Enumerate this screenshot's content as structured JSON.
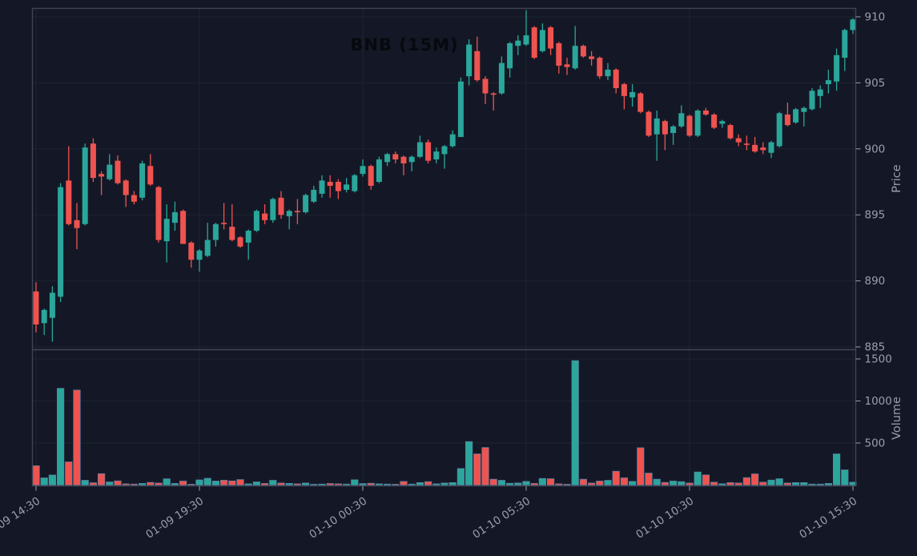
{
  "chart_data": {
    "type": "candlestick",
    "title": "BNB (15M)",
    "symbol": "BNB",
    "timeframe": "15M",
    "legend_position": "none",
    "grid": true,
    "x_axis": {
      "tick_labels": [
        "01-09 14:30",
        "01-09 19:30",
        "01-10 00:30",
        "01-10 05:30",
        "01-10 10:30",
        "01-10 15:30"
      ],
      "tick_indices": [
        0,
        20,
        40,
        60,
        80,
        100
      ]
    },
    "price_axis": {
      "label": "Price",
      "ticks": [
        885,
        890,
        895,
        900,
        905,
        910
      ],
      "range": [
        884.3,
        910.7
      ]
    },
    "volume_axis": {
      "label": "Volume",
      "ticks": [
        500,
        1000,
        1500
      ],
      "range": [
        0,
        1600
      ]
    },
    "colors": {
      "up": "#2aa69a",
      "down": "#ef5350",
      "background": "#141826",
      "grid": "#1e2330",
      "frame": "#3f4454",
      "tick_text": "#9b9eab",
      "title_text": "#07090e",
      "volume_bar_edge": "#5c82a6"
    },
    "candles_format": [
      "open",
      "high",
      "low",
      "close",
      "volume"
    ],
    "candles": [
      [
        889.2,
        889.9,
        886.1,
        886.7,
        230
      ],
      [
        886.8,
        887.9,
        885.9,
        887.8,
        86
      ],
      [
        887.2,
        889.6,
        885.4,
        889.1,
        120
      ],
      [
        888.8,
        897.4,
        888.4,
        897.1,
        1150
      ],
      [
        897.6,
        900.2,
        894.2,
        894.3,
        276
      ],
      [
        894.6,
        895.9,
        892.4,
        894.0,
        1130
      ],
      [
        894.3,
        900.4,
        894.2,
        900.1,
        57
      ],
      [
        900.4,
        900.8,
        897.5,
        897.8,
        28
      ],
      [
        898.1,
        898.3,
        896.5,
        897.9,
        136
      ],
      [
        897.7,
        899.6,
        897.6,
        898.8,
        38
      ],
      [
        899.1,
        899.5,
        897.3,
        897.4,
        50
      ],
      [
        897.6,
        897.7,
        895.6,
        896.5,
        15
      ],
      [
        896.5,
        896.8,
        895.8,
        896.0,
        12
      ],
      [
        896.3,
        899.1,
        896.1,
        898.9,
        20
      ],
      [
        898.7,
        899.6,
        897.2,
        897.3,
        32
      ],
      [
        897.1,
        897.2,
        892.9,
        893.1,
        25
      ],
      [
        893.0,
        895.8,
        891.4,
        894.7,
        75
      ],
      [
        894.4,
        896.0,
        893.8,
        895.2,
        20
      ],
      [
        895.3,
        895.4,
        892.8,
        892.8,
        48
      ],
      [
        892.9,
        893.0,
        891.0,
        891.6,
        10
      ],
      [
        891.6,
        892.4,
        890.7,
        892.3,
        62
      ],
      [
        891.9,
        894.4,
        891.8,
        893.1,
        81
      ],
      [
        893.1,
        894.4,
        892.6,
        894.3,
        48
      ],
      [
        894.4,
        895.9,
        893.9,
        894.3,
        58
      ],
      [
        894.1,
        895.8,
        893.0,
        893.1,
        50
      ],
      [
        893.3,
        893.4,
        892.5,
        892.6,
        66
      ],
      [
        892.9,
        893.9,
        891.6,
        893.8,
        15
      ],
      [
        893.8,
        895.4,
        893.7,
        895.3,
        38
      ],
      [
        895.1,
        895.8,
        894.3,
        894.6,
        20
      ],
      [
        894.6,
        896.3,
        894.4,
        896.2,
        57
      ],
      [
        896.3,
        896.8,
        894.7,
        895.0,
        25
      ],
      [
        894.9,
        895.4,
        893.9,
        895.3,
        20
      ],
      [
        895.3,
        896.2,
        894.3,
        895.2,
        15
      ],
      [
        895.2,
        896.6,
        895.1,
        896.5,
        25
      ],
      [
        896.0,
        897.2,
        895.9,
        896.9,
        10
      ],
      [
        896.6,
        898.0,
        896.3,
        897.6,
        12
      ],
      [
        897.5,
        898.0,
        896.3,
        897.2,
        19
      ],
      [
        897.5,
        897.7,
        896.2,
        896.8,
        15
      ],
      [
        896.9,
        897.8,
        896.7,
        897.3,
        12
      ],
      [
        896.8,
        898.1,
        896.7,
        898.0,
        63
      ],
      [
        898.1,
        899.2,
        897.9,
        898.7,
        18
      ],
      [
        898.7,
        898.8,
        896.9,
        897.2,
        22
      ],
      [
        897.5,
        899.4,
        897.4,
        899.2,
        15
      ],
      [
        899.0,
        899.7,
        898.7,
        899.6,
        12
      ],
      [
        899.6,
        899.8,
        898.9,
        899.2,
        10
      ],
      [
        899.4,
        899.5,
        898.0,
        898.9,
        44
      ],
      [
        899.0,
        899.5,
        898.3,
        899.4,
        12
      ],
      [
        899.4,
        901.0,
        899.3,
        900.5,
        30
      ],
      [
        900.5,
        900.7,
        898.9,
        899.1,
        41
      ],
      [
        899.2,
        900.1,
        898.9,
        899.8,
        15
      ],
      [
        899.6,
        900.3,
        898.5,
        900.2,
        25
      ],
      [
        900.2,
        901.4,
        900.1,
        901.1,
        30
      ],
      [
        900.9,
        905.4,
        900.9,
        905.1,
        197
      ],
      [
        905.5,
        908.3,
        904.8,
        907.9,
        517
      ],
      [
        907.4,
        908.5,
        905.1,
        905.2,
        371
      ],
      [
        905.3,
        905.5,
        903.4,
        904.2,
        447
      ],
      [
        904.2,
        904.3,
        902.9,
        904.1,
        70
      ],
      [
        904.2,
        907.0,
        904.1,
        906.5,
        57
      ],
      [
        906.1,
        908.1,
        905.4,
        908.0,
        22
      ],
      [
        907.8,
        908.6,
        907.1,
        908.2,
        25
      ],
      [
        907.9,
        910.5,
        907.8,
        908.6,
        44
      ],
      [
        909.2,
        909.3,
        906.8,
        906.9,
        20
      ],
      [
        907.4,
        909.5,
        907.3,
        909.0,
        79
      ],
      [
        909.2,
        909.3,
        907.1,
        907.6,
        76
      ],
      [
        908.0,
        908.1,
        905.7,
        906.3,
        15
      ],
      [
        906.4,
        906.9,
        905.6,
        906.2,
        10
      ],
      [
        906.1,
        909.3,
        906.0,
        907.8,
        1480
      ],
      [
        907.8,
        907.9,
        906.9,
        907.0,
        70
      ],
      [
        907.0,
        907.4,
        906.3,
        906.8,
        25
      ],
      [
        906.9,
        907.0,
        905.3,
        905.5,
        48
      ],
      [
        905.5,
        906.5,
        905.2,
        906.0,
        57
      ],
      [
        906.0,
        906.1,
        904.2,
        904.6,
        165
      ],
      [
        904.9,
        905.0,
        903.0,
        904.0,
        86
      ],
      [
        903.9,
        904.9,
        903.2,
        904.3,
        44
      ],
      [
        904.2,
        904.3,
        902.7,
        902.8,
        444
      ],
      [
        902.8,
        902.9,
        900.9,
        901.0,
        143
      ],
      [
        901.1,
        902.9,
        899.1,
        902.3,
        70
      ],
      [
        902.1,
        902.2,
        899.9,
        901.1,
        32
      ],
      [
        901.2,
        901.8,
        900.3,
        901.7,
        48
      ],
      [
        901.7,
        903.3,
        901.6,
        902.7,
        41
      ],
      [
        902.5,
        902.6,
        900.9,
        901.0,
        25
      ],
      [
        901.0,
        903.0,
        900.9,
        902.9,
        156
      ],
      [
        902.9,
        903.1,
        902.5,
        902.6,
        121
      ],
      [
        902.6,
        902.7,
        901.5,
        901.6,
        35
      ],
      [
        901.9,
        902.2,
        901.6,
        902.1,
        16
      ],
      [
        901.8,
        901.9,
        900.7,
        900.8,
        30
      ],
      [
        900.8,
        901.1,
        900.2,
        900.5,
        25
      ],
      [
        900.4,
        901.0,
        899.9,
        900.3,
        89
      ],
      [
        900.3,
        900.9,
        899.7,
        899.8,
        133
      ],
      [
        900.1,
        900.5,
        899.6,
        899.9,
        35
      ],
      [
        899.7,
        900.6,
        899.3,
        900.5,
        60
      ],
      [
        900.2,
        902.8,
        900.1,
        902.7,
        76
      ],
      [
        902.6,
        903.5,
        901.7,
        901.8,
        25
      ],
      [
        902.0,
        903.1,
        901.9,
        903.0,
        30
      ],
      [
        902.8,
        903.2,
        901.7,
        903.1,
        30
      ],
      [
        903.0,
        904.6,
        902.9,
        904.4,
        12
      ],
      [
        904.0,
        904.8,
        903.1,
        904.5,
        12
      ],
      [
        904.9,
        906.0,
        904.2,
        905.2,
        20
      ],
      [
        905.1,
        907.6,
        904.4,
        907.1,
        371
      ],
      [
        906.9,
        909.1,
        905.9,
        909.0,
        181
      ],
      [
        909.0,
        909.9,
        908.7,
        909.8,
        35
      ]
    ]
  }
}
